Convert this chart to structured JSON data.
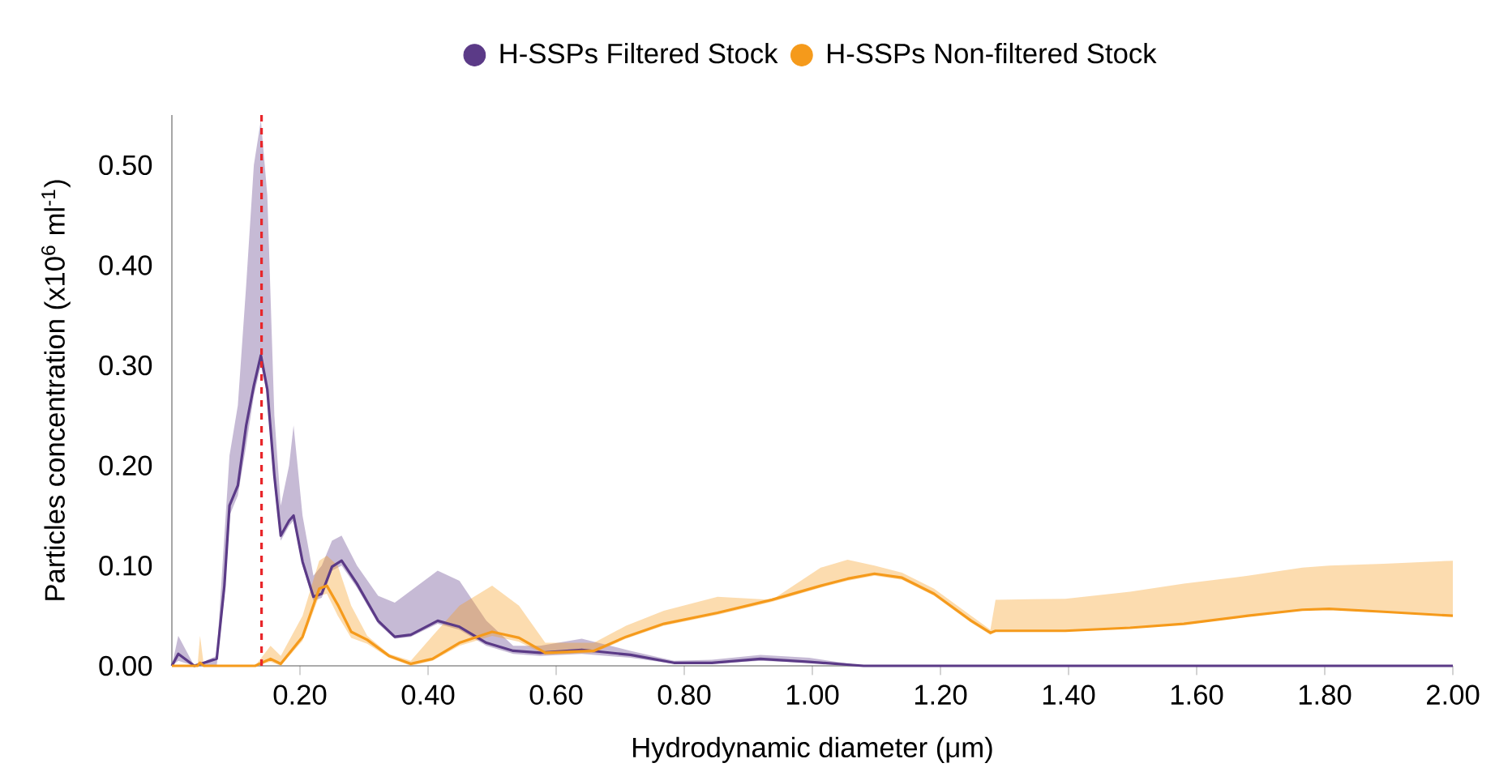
{
  "chart_data": {
    "type": "line",
    "xlabel": "Hydrodynamic diameter (μm)",
    "ylabel": "Particles concentration (x10$^{6}$ ml$^{-1}$)",
    "xlim": [
      0,
      2
    ],
    "xticks": [
      {
        "value": 0.2,
        "label": "0.20"
      },
      {
        "value": 0.4,
        "label": "0.40"
      },
      {
        "value": 0.6,
        "label": "0.60"
      },
      {
        "value": 0.8,
        "label": "0.80"
      },
      {
        "value": 1.0,
        "label": "1.00"
      },
      {
        "value": 1.2,
        "label": "1.20"
      },
      {
        "value": 1.4,
        "label": "1.40"
      },
      {
        "value": 1.6,
        "label": "1.60"
      },
      {
        "value": 1.8,
        "label": "1.80"
      },
      {
        "value": 2.0,
        "label": "2.00"
      }
    ],
    "ylim": [
      0,
      0.55
    ],
    "yticks": [
      {
        "value": 0,
        "label": "0.00"
      },
      {
        "value": 0.1,
        "label": "0.10"
      },
      {
        "value": 0.2,
        "label": "0.20"
      },
      {
        "value": 0.3,
        "label": "0.30"
      },
      {
        "value": 0.4,
        "label": "0.40"
      },
      {
        "value": 0.5,
        "label": "0.50"
      }
    ],
    "legend": "top",
    "line_style": "solid",
    "series": [
      {
        "name": "H-SSPs Filtered Stock",
        "color": "#5b3a87",
        "x": [
          0,
          0.01,
          0.035,
          0.07,
          0.082,
          0.09,
          0.103,
          0.116,
          0.128,
          0.139,
          0.149,
          0.16,
          0.17,
          0.183,
          0.19,
          0.204,
          0.221,
          0.234,
          0.25,
          0.265,
          0.289,
          0.322,
          0.348,
          0.373,
          0.415,
          0.449,
          0.491,
          0.533,
          0.575,
          0.64,
          0.716,
          0.784,
          0.843,
          0.919,
          0.995,
          1.08,
          1.5,
          2.0
        ],
        "values": [
          0,
          0.012,
          0,
          0.007,
          0.08,
          0.16,
          0.18,
          0.24,
          0.28,
          0.31,
          0.276,
          0.19,
          0.13,
          0.145,
          0.15,
          0.104,
          0.069,
          0.072,
          0.099,
          0.105,
          0.082,
          0.045,
          0.029,
          0.031,
          0.045,
          0.039,
          0.023,
          0.015,
          0.013,
          0.016,
          0.011,
          0.003,
          0.003,
          0.007,
          0.004,
          0,
          0,
          0
        ],
        "upper": [
          0,
          0.03,
          0,
          0.01,
          0.13,
          0.21,
          0.26,
          0.38,
          0.5,
          0.545,
          0.47,
          0.25,
          0.16,
          0.2,
          0.24,
          0.15,
          0.09,
          0.1,
          0.125,
          0.13,
          0.1,
          0.07,
          0.063,
          0.075,
          0.095,
          0.085,
          0.045,
          0.02,
          0.02,
          0.027,
          0.015,
          0.005,
          0.006,
          0.011,
          0.008,
          0,
          0,
          0
        ],
        "lower": [
          0,
          0.005,
          0,
          0,
          0.07,
          0.15,
          0.17,
          0.22,
          0.27,
          0.3,
          0.27,
          0.18,
          0.125,
          0.14,
          0.145,
          0.1,
          0.065,
          0.068,
          0.095,
          0.1,
          0.078,
          0.042,
          0.027,
          0.029,
          0.042,
          0.036,
          0.02,
          0.012,
          0.01,
          0.012,
          0.008,
          0.002,
          0.002,
          0.005,
          0.003,
          0,
          0,
          0
        ]
      },
      {
        "name": "H-SSPs Non-filtered Stock",
        "color": "#f59a1b",
        "x": [
          0,
          0.04,
          0.044,
          0.05,
          0.13,
          0.154,
          0.17,
          0.204,
          0.23,
          0.242,
          0.259,
          0.28,
          0.305,
          0.339,
          0.373,
          0.407,
          0.449,
          0.5,
          0.542,
          0.583,
          0.659,
          0.709,
          0.768,
          0.852,
          0.937,
          1.013,
          1.055,
          1.097,
          1.14,
          1.19,
          1.248,
          1.278,
          1.286,
          1.395,
          1.496,
          1.58,
          1.68,
          1.765,
          1.807,
          1.892,
          2.0
        ],
        "values": [
          0,
          0,
          0.003,
          0,
          0,
          0.007,
          0.002,
          0.029,
          0.077,
          0.08,
          0.061,
          0.034,
          0.026,
          0.01,
          0.002,
          0.007,
          0.023,
          0.034,
          0.028,
          0.013,
          0.015,
          0.029,
          0.042,
          0.053,
          0.066,
          0.08,
          0.087,
          0.092,
          0.088,
          0.072,
          0.045,
          0.033,
          0.035,
          0.035,
          0.038,
          0.042,
          0.05,
          0.056,
          0.057,
          0.054,
          0.05
        ],
        "upper": [
          0,
          0,
          0.03,
          0,
          0,
          0.02,
          0.01,
          0.05,
          0.105,
          0.11,
          0.1,
          0.06,
          0.03,
          0.012,
          0.005,
          0.03,
          0.06,
          0.08,
          0.06,
          0.023,
          0.023,
          0.04,
          0.055,
          0.069,
          0.066,
          0.098,
          0.106,
          0.1,
          0.093,
          0.077,
          0.05,
          0.036,
          0.066,
          0.067,
          0.074,
          0.082,
          0.09,
          0.098,
          0.1,
          0.102,
          0.105
        ],
        "lower": [
          0,
          0,
          0,
          0,
          0,
          0.004,
          0,
          0.025,
          0.07,
          0.072,
          0.05,
          0.028,
          0.022,
          0.008,
          0,
          0.005,
          0.02,
          0.03,
          0.024,
          0.011,
          0.013,
          0.027,
          0.04,
          0.051,
          0.064,
          0.078,
          0.085,
          0.09,
          0.086,
          0.07,
          0.043,
          0.031,
          0.035,
          0.035,
          0.038,
          0.042,
          0.05,
          0.056,
          0.057,
          0.054,
          0.05
        ]
      }
    ],
    "ref_lines": [
      {
        "axis": "x",
        "value": 0.14,
        "color": "#e8262a",
        "line_style": "dashed"
      }
    ]
  }
}
